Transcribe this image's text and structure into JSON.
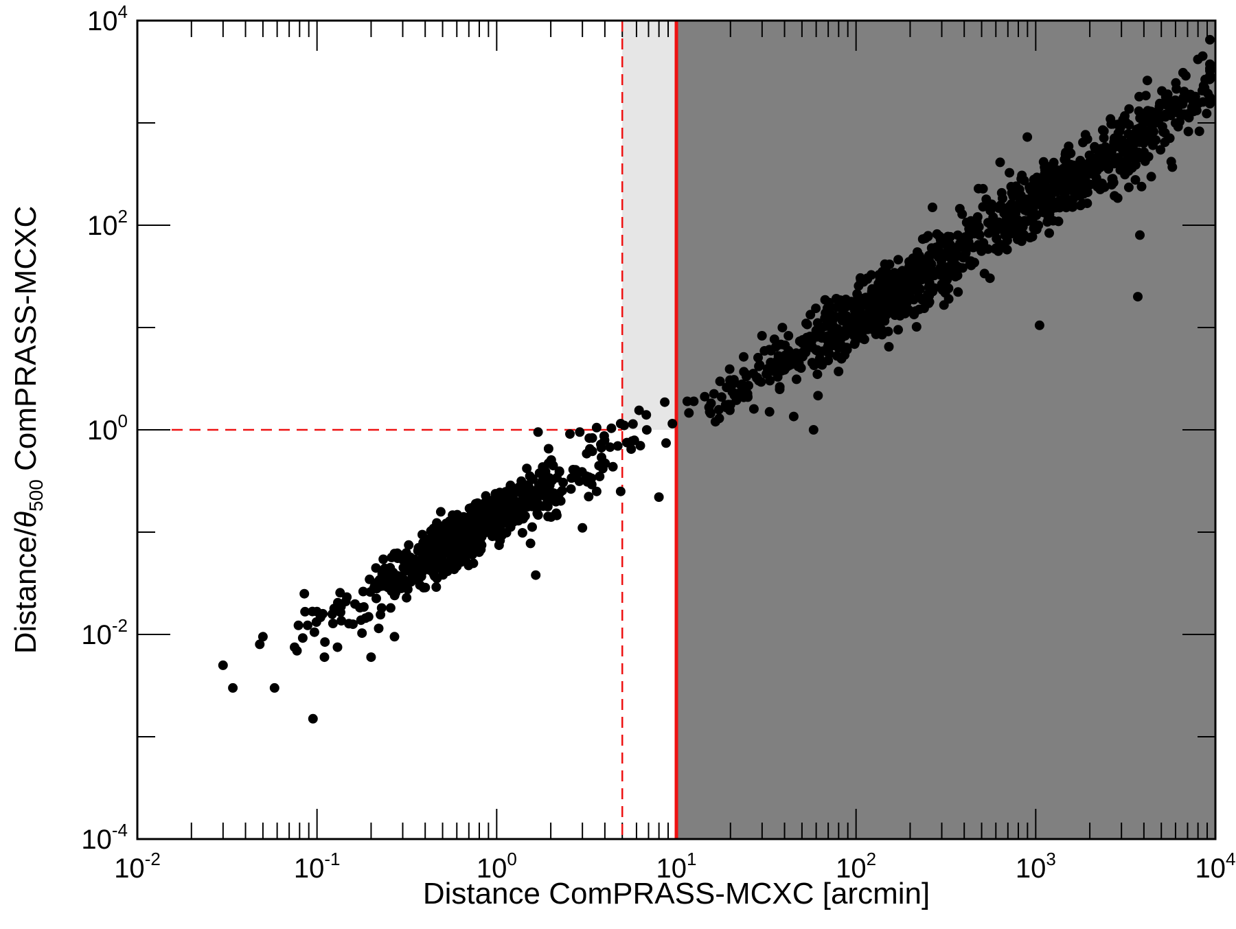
{
  "chart_data": {
    "type": "scatter",
    "xlabel": "Distance ComPRASS-MCXC [arcmin]",
    "ylabel": {
      "prefix": "Distance/",
      "symbol": "θ",
      "subscript": "500",
      "suffix": " ComPRASS-MCXC"
    },
    "xscale": "log",
    "yscale": "log",
    "xlim": [
      0.01,
      10000
    ],
    "ylim": [
      0.0001,
      10000
    ],
    "x_tick_labels": [
      {
        "base": "10",
        "exp": "-2",
        "value": 0.01
      },
      {
        "base": "10",
        "exp": "-1",
        "value": 0.1
      },
      {
        "base": "10",
        "exp": "0",
        "value": 1
      },
      {
        "base": "10",
        "exp": "1",
        "value": 10
      },
      {
        "base": "10",
        "exp": "2",
        "value": 100
      },
      {
        "base": "10",
        "exp": "3",
        "value": 1000
      },
      {
        "base": "10",
        "exp": "4",
        "value": 10000
      }
    ],
    "y_tick_labels": [
      {
        "base": "10",
        "exp": "-4",
        "value": 0.0001
      },
      {
        "base": "10",
        "exp": "-2",
        "value": 0.01
      },
      {
        "base": "10",
        "exp": "0",
        "value": 1
      },
      {
        "base": "10",
        "exp": "2",
        "value": 100
      },
      {
        "base": "10",
        "exp": "4",
        "value": 10000
      }
    ],
    "y_minor_ticks": [
      0.001,
      0.1,
      10,
      1000
    ],
    "regions": [
      {
        "name": "excluded",
        "x_from": 10,
        "x_to": 10000,
        "y_from": 0.0001,
        "y_to": 10000,
        "color": "#808080"
      },
      {
        "name": "ambiguous",
        "x_from": 5,
        "x_to": 10,
        "y_from": 1,
        "y_to": 10000,
        "color": "#e6e6e6"
      }
    ],
    "threshold_lines": [
      {
        "orientation": "vertical",
        "value": 10,
        "style": "solid",
        "color": "#ee1111"
      },
      {
        "orientation": "vertical",
        "value": 5,
        "style": "dashed",
        "color": "#ee1111"
      },
      {
        "orientation": "horizontal",
        "value": 1,
        "x_to": 5,
        "style": "dashed",
        "color": "#ee1111"
      }
    ],
    "marker_color": "#000000",
    "clusters": [
      {
        "x_center": 0.65,
        "y_center": 0.085,
        "x_spread": 0.28,
        "y_spread": 0.24,
        "count": 520
      },
      {
        "x_center": 0.8,
        "y_center": 0.15,
        "x_spread": 0.16,
        "y_spread": 0.16,
        "count": 160
      },
      {
        "x_center": 0.3,
        "y_center": 0.035,
        "x_spread": 0.3,
        "y_spread": 0.3,
        "count": 70
      },
      {
        "x_center": 2.2,
        "y_center": 0.35,
        "x_spread": 0.25,
        "y_spread": 0.3,
        "count": 45
      },
      {
        "x_center": 140,
        "y_center": 18,
        "x_spread": 0.32,
        "y_spread": 0.38,
        "count": 520
      },
      {
        "x_center": 1400,
        "y_center": 250,
        "x_spread": 0.34,
        "y_spread": 0.38,
        "count": 420
      },
      {
        "x_center": 5000,
        "y_center": 1300,
        "x_spread": 0.18,
        "y_spread": 0.25,
        "count": 90
      },
      {
        "x_center": 28,
        "y_center": 3,
        "x_spread": 0.22,
        "y_spread": 0.25,
        "count": 55
      }
    ],
    "points": [
      {
        "x": 0.03,
        "y": 0.005
      },
      {
        "x": 0.034,
        "y": 0.003
      },
      {
        "x": 0.058,
        "y": 0.003
      },
      {
        "x": 0.095,
        "y": 0.0015
      },
      {
        "x": 0.048,
        "y": 0.008
      },
      {
        "x": 0.05,
        "y": 0.0095
      },
      {
        "x": 0.075,
        "y": 0.0075
      },
      {
        "x": 0.11,
        "y": 0.006
      },
      {
        "x": 0.13,
        "y": 0.0075
      },
      {
        "x": 0.2,
        "y": 0.006
      },
      {
        "x": 0.27,
        "y": 0.0095
      },
      {
        "x": 0.085,
        "y": 0.025
      },
      {
        "x": 1.65,
        "y": 0.038
      },
      {
        "x": 1.7,
        "y": 0.95
      },
      {
        "x": 2.9,
        "y": 0.95
      },
      {
        "x": 4.9,
        "y": 1.15
      },
      {
        "x": 6.2,
        "y": 1.55
      },
      {
        "x": 6.8,
        "y": 1.4
      },
      {
        "x": 9.5,
        "y": 1.15
      },
      {
        "x": 3.6,
        "y": 1.05
      },
      {
        "x": 3.8,
        "y": 0.72
      },
      {
        "x": 4.9,
        "y": 0.25
      },
      {
        "x": 5.3,
        "y": 0.75
      },
      {
        "x": 6.3,
        "y": 0.7
      },
      {
        "x": 8.0,
        "y": 0.22
      },
      {
        "x": 3.0,
        "y": 0.11
      },
      {
        "x": 3.6,
        "y": 0.25
      },
      {
        "x": 11.5,
        "y": 1.9
      },
      {
        "x": 12.5,
        "y": 1.9
      },
      {
        "x": 15.5,
        "y": 1.45
      },
      {
        "x": 16.5,
        "y": 1.2
      },
      {
        "x": 19,
        "y": 1.65
      },
      {
        "x": 27,
        "y": 1.6
      },
      {
        "x": 33,
        "y": 1.5
      },
      {
        "x": 45,
        "y": 1.35
      },
      {
        "x": 58,
        "y": 1.0
      },
      {
        "x": 1050,
        "y": 10.5
      },
      {
        "x": 3700,
        "y": 20
      },
      {
        "x": 3800,
        "y": 80
      },
      {
        "x": 9500,
        "y": 6500
      },
      {
        "x": 8500,
        "y": 4500
      }
    ]
  }
}
